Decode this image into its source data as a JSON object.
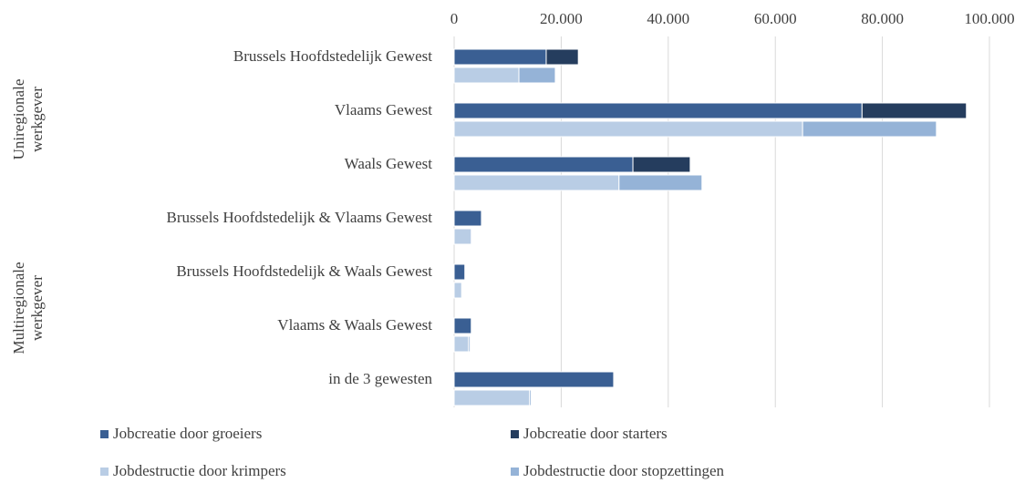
{
  "chart_data": {
    "type": "stacked-barh-pair",
    "categories": [
      "Brussels Hoofdstedelijk Gewest",
      "Vlaams Gewest",
      "Waals Gewest",
      "Brussels Hoofdstedelijk & Vlaams Gewest",
      "Brussels Hoofdstedelijk & Waals Gewest",
      "Vlaams & Waals Gewest",
      "in de 3 gewesten"
    ],
    "groups": [
      {
        "lines": [
          "Uniregionale",
          "werkgever"
        ]
      },
      {
        "lines": [
          "Multiregionale",
          "werkgever"
        ]
      }
    ],
    "series": [
      {
        "name": "Jobcreatie door groeiers",
        "color": "#3a5f93",
        "stack": "creation",
        "values": [
          17200,
          76200,
          33400,
          5100,
          2000,
          3200,
          29800
        ]
      },
      {
        "name": "Jobcreatie door starters",
        "color": "#253d5e",
        "stack": "creation",
        "values": [
          6000,
          19500,
          10700,
          0,
          0,
          0,
          0
        ]
      },
      {
        "name": "Jobdestructie door krimpers",
        "color": "#b9cde5",
        "stack": "destruction",
        "values": [
          12100,
          65100,
          30800,
          3200,
          1400,
          2700,
          14100
        ]
      },
      {
        "name": "Jobdestructie door stopzettingen",
        "color": "#95b3d7",
        "stack": "destruction",
        "values": [
          6800,
          25000,
          15500,
          0,
          0,
          300,
          300
        ]
      }
    ],
    "xlim": [
      0,
      100000
    ],
    "xticks": [
      0,
      {
        "value": 20000,
        "label": "20.000"
      },
      {
        "value": 40000,
        "label": "40.000"
      },
      {
        "value": 60000,
        "label": "60.000"
      },
      {
        "value": 80000,
        "label": "80.000"
      },
      {
        "value": 100000,
        "label": "100.000"
      }
    ],
    "grid": true,
    "legend": "bottom"
  }
}
